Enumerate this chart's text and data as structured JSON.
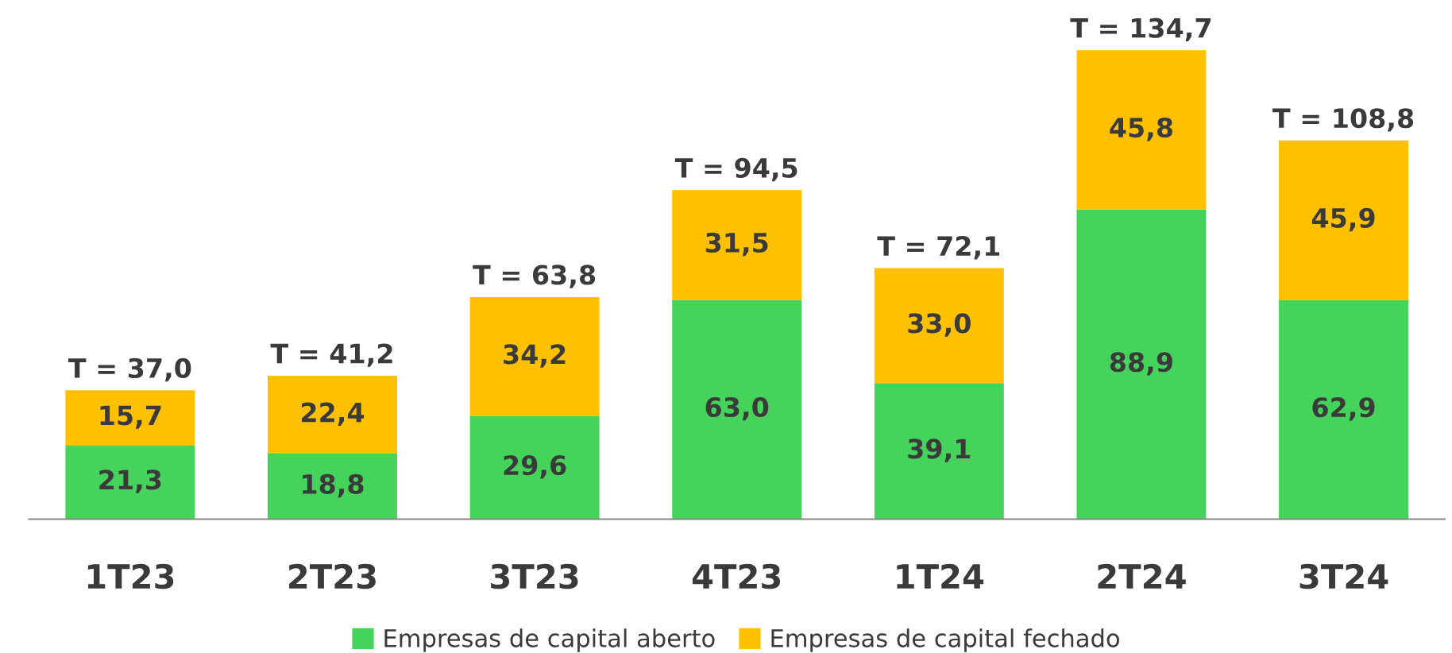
{
  "chart_data": {
    "type": "bar",
    "stacked": true,
    "categories": [
      "1T23",
      "2T23",
      "3T23",
      "4T23",
      "1T24",
      "2T24",
      "3T24"
    ],
    "series": [
      {
        "name": "Empresas de capital aberto",
        "color": "#46d35b",
        "values": [
          21.3,
          18.8,
          29.6,
          63.0,
          39.1,
          88.9,
          62.9
        ],
        "value_labels": [
          "21,3",
          "18,8",
          "29,6",
          "63,0",
          "39,1",
          "88,9",
          "62,9"
        ]
      },
      {
        "name": "Empresas de capital fechado",
        "color": "#ffc000",
        "values": [
          15.7,
          22.4,
          34.2,
          31.5,
          33.0,
          45.8,
          45.9
        ],
        "value_labels": [
          "15,7",
          "22,4",
          "34,2",
          "31,5",
          "33,0",
          "45,8",
          "45,9"
        ]
      }
    ],
    "totals": [
      "T = 37,0",
      "T = 41,2",
      "T = 63,8",
      "T = 94,5",
      "T = 72,1",
      "T = 134,7",
      "T = 108,8"
    ],
    "legend": "bottom",
    "grid": false
  }
}
